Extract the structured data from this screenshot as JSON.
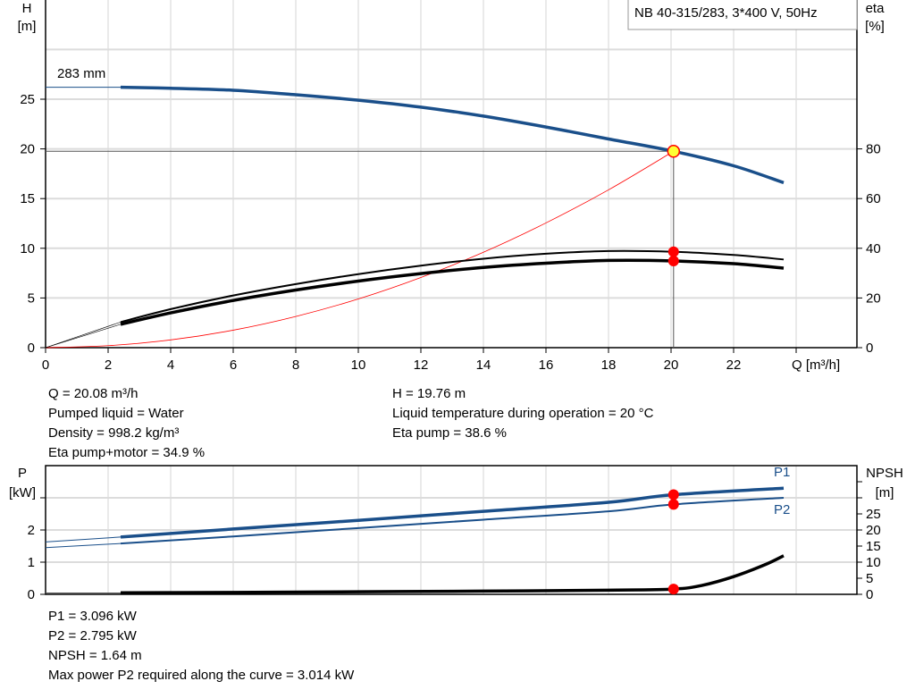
{
  "chart_data": [
    {
      "type": "line",
      "title": "NB 40-315/283, 3*400 V, 50Hz",
      "xlabel": "Q [m³/h]",
      "ylabel": "H\n[m]",
      "ylabel_lines": [
        "H",
        "[m]"
      ],
      "y2label_lines": [
        "eta",
        "[%]"
      ],
      "xlim": [
        0,
        26
      ],
      "ylim": [
        0,
        35
      ],
      "y2lim": [
        0,
        126
      ],
      "xticks": [
        "0",
        "2",
        "4",
        "6",
        "8",
        "10",
        "12",
        "14",
        "16",
        "18",
        "20",
        "22"
      ],
      "yticks": [
        "0",
        "5",
        "10",
        "15",
        "20",
        "25"
      ],
      "y2ticks": [
        "0",
        "20",
        "40",
        "60",
        "80"
      ],
      "grid": true,
      "annotation": "283 mm",
      "duty_point": {
        "Q": 20.08,
        "H": 19.76
      },
      "series": [
        {
          "key": "H",
          "axis": "left",
          "color": "#1a4f8a",
          "x": [
            2.4,
            4,
            6,
            8,
            10,
            12,
            14,
            16,
            18,
            20.08,
            22,
            23.6
          ],
          "y": [
            26.2,
            26.1,
            25.9,
            25.45,
            24.9,
            24.2,
            23.3,
            22.2,
            21.0,
            19.76,
            18.3,
            16.6
          ]
        },
        {
          "key": "eta_pump",
          "axis": "right",
          "color": "#000000",
          "x": [
            2.4,
            4,
            6,
            8,
            10,
            12,
            14,
            16,
            18,
            20.08,
            22,
            23.6
          ],
          "y": [
            10.3,
            15.5,
            21,
            25.6,
            29.6,
            33,
            35.8,
            37.8,
            38.9,
            38.6,
            37.3,
            35.5
          ]
        },
        {
          "key": "eta_pump_motor",
          "axis": "right",
          "color": "#000000",
          "x": [
            2.4,
            4,
            6,
            8,
            10,
            12,
            14,
            16,
            18,
            20.08,
            22,
            23.6
          ],
          "y": [
            9.4,
            14,
            19,
            23.2,
            26.8,
            29.8,
            32.3,
            34,
            35.1,
            34.9,
            33.8,
            32
          ]
        },
        {
          "key": "system_curve",
          "axis": "left",
          "color": "#ff0000",
          "x": [
            0,
            2,
            4,
            6,
            8,
            10,
            12,
            14,
            16,
            18,
            20.08
          ],
          "y": [
            0,
            0.2,
            0.78,
            1.76,
            3.14,
            4.9,
            7.06,
            9.6,
            12.55,
            15.88,
            19.76
          ]
        }
      ]
    },
    {
      "type": "line",
      "ylabel_lines": [
        "P",
        "[kW]"
      ],
      "y2label_lines": [
        "NPSH",
        "[m]"
      ],
      "xlim": [
        0,
        26
      ],
      "ylim": [
        0,
        4
      ],
      "y2lim": [
        0,
        40
      ],
      "yticks": [
        "0",
        "1",
        "2"
      ],
      "y2ticks": [
        "0",
        "5",
        "10",
        "15",
        "20",
        "25"
      ],
      "grid": true,
      "series": [
        {
          "name": "P1",
          "axis": "left",
          "color": "#1a4f8a",
          "x": [
            2.4,
            6,
            10,
            14,
            18,
            20.08,
            23.6
          ],
          "y": [
            1.78,
            2.03,
            2.3,
            2.58,
            2.86,
            3.096,
            3.3
          ]
        },
        {
          "name": "P2",
          "axis": "left",
          "color": "#1a4f8a",
          "x": [
            2.4,
            6,
            10,
            14,
            18,
            20.08,
            23.6
          ],
          "y": [
            1.58,
            1.8,
            2.06,
            2.32,
            2.58,
            2.795,
            3.0
          ]
        },
        {
          "key": "NPSH",
          "axis": "right",
          "color": "#000000",
          "x": [
            2.4,
            6,
            10,
            14,
            18,
            20.08,
            21,
            22,
            23,
            23.6
          ],
          "y": [
            0.5,
            0.6,
            0.8,
            1.0,
            1.3,
            1.64,
            2.8,
            5.5,
            9.2,
            12
          ]
        }
      ]
    }
  ],
  "results_top": {
    "left": [
      "Q = 20.08 m³/h",
      "Pumped liquid = Water",
      "Density = 998.2 kg/m³",
      "Eta pump+motor = 34.9 %"
    ],
    "right": [
      "H = 19.76 m",
      "Liquid temperature during operation = 20 °C",
      "Eta pump = 38.6 %"
    ]
  },
  "results_bottom": [
    "P1 = 3.096 kW",
    "P2 = 2.795 kW",
    "NPSH = 1.64 m",
    "Max power P2 required along the curve = 3.014 kW"
  ]
}
